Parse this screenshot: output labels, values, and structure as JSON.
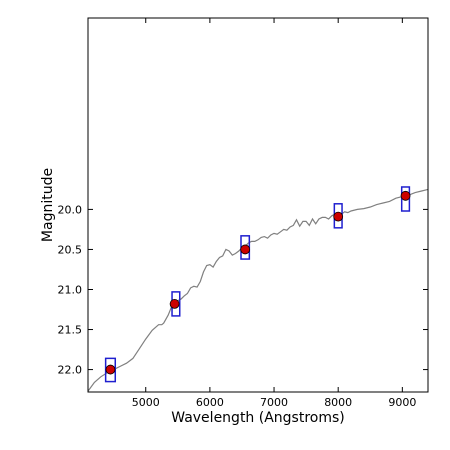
{
  "chart_data": {
    "type": "line",
    "title": "",
    "xlabel": "Wavelength (Angstroms)",
    "ylabel": "Magnitude",
    "xlim": [
      4100,
      9400
    ],
    "ylim": [
      22.28,
      17.61
    ],
    "y_inverted": true,
    "grid": false,
    "x_ticks": [
      5000,
      6000,
      7000,
      8000,
      9000
    ],
    "y_ticks": [
      20.0,
      20.5,
      21.0,
      21.5,
      22.0
    ],
    "y_tick_labels": [
      "20.0",
      "20.5",
      "21.0",
      "21.5",
      "22.0"
    ],
    "series": [
      {
        "kind": "spectrum-line",
        "color": "#808080",
        "x": [
          4100,
          4200,
          4300,
          4400,
          4500,
          4600,
          4700,
          4800,
          4900,
          5000,
          5100,
          5200,
          5250,
          5280,
          5350,
          5400,
          5450,
          5500,
          5550,
          5600,
          5650,
          5700,
          5750,
          5800,
          5850,
          5900,
          5950,
          6000,
          6050,
          6100,
          6150,
          6200,
          6250,
          6300,
          6350,
          6400,
          6450,
          6500,
          6550,
          6600,
          6650,
          6700,
          6750,
          6800,
          6850,
          6900,
          6950,
          7000,
          7050,
          7100,
          7150,
          7200,
          7250,
          7300,
          7350,
          7400,
          7450,
          7500,
          7550,
          7600,
          7650,
          7700,
          7750,
          7800,
          7850,
          7900,
          7950,
          8000,
          8050,
          8100,
          8150,
          8200,
          8300,
          8400,
          8500,
          8600,
          8700,
          8800,
          8900,
          9000,
          9100,
          9200,
          9300,
          9400
        ],
        "y": [
          22.27,
          22.16,
          22.09,
          22.04,
          22.0,
          21.96,
          21.92,
          21.86,
          21.74,
          21.62,
          21.51,
          21.44,
          21.44,
          21.42,
          21.32,
          21.22,
          21.15,
          21.14,
          21.12,
          21.08,
          21.05,
          20.98,
          20.96,
          20.97,
          20.9,
          20.78,
          20.7,
          20.69,
          20.72,
          20.65,
          20.6,
          20.58,
          20.5,
          20.52,
          20.57,
          20.55,
          20.52,
          20.48,
          20.46,
          20.42,
          20.4,
          20.4,
          20.38,
          20.35,
          20.34,
          20.36,
          20.32,
          20.3,
          20.31,
          20.28,
          20.25,
          20.26,
          20.22,
          20.2,
          20.13,
          20.21,
          20.15,
          20.15,
          20.2,
          20.12,
          20.18,
          20.12,
          20.1,
          20.1,
          20.12,
          20.08,
          20.06,
          20.08,
          20.06,
          20.03,
          20.04,
          20.02,
          20.0,
          19.99,
          19.97,
          19.94,
          19.92,
          19.9,
          19.86,
          19.84,
          19.82,
          19.79,
          19.77,
          19.75
        ]
      },
      {
        "kind": "points",
        "color": "#cc0000",
        "x": [
          4450,
          5450,
          6550,
          8000,
          9050
        ],
        "y": [
          22.0,
          21.18,
          20.5,
          20.09,
          19.83
        ]
      }
    ],
    "boxes": [
      {
        "x_center": 4450,
        "x_half_width": 75,
        "y_top": 21.86,
        "y_bottom": 22.15
      },
      {
        "x_center": 5470,
        "x_half_width": 60,
        "y_top": 21.03,
        "y_bottom": 21.33
      },
      {
        "x_center": 6550,
        "x_half_width": 65,
        "y_top": 20.33,
        "y_bottom": 20.62
      },
      {
        "x_center": 8000,
        "x_half_width": 60,
        "y_top": 19.93,
        "y_bottom": 20.23
      },
      {
        "x_center": 9050,
        "x_half_width": 60,
        "y_top": 19.72,
        "y_bottom": 20.02
      }
    ],
    "box_color": "#1f1fcf",
    "axes_color": "#000000"
  }
}
